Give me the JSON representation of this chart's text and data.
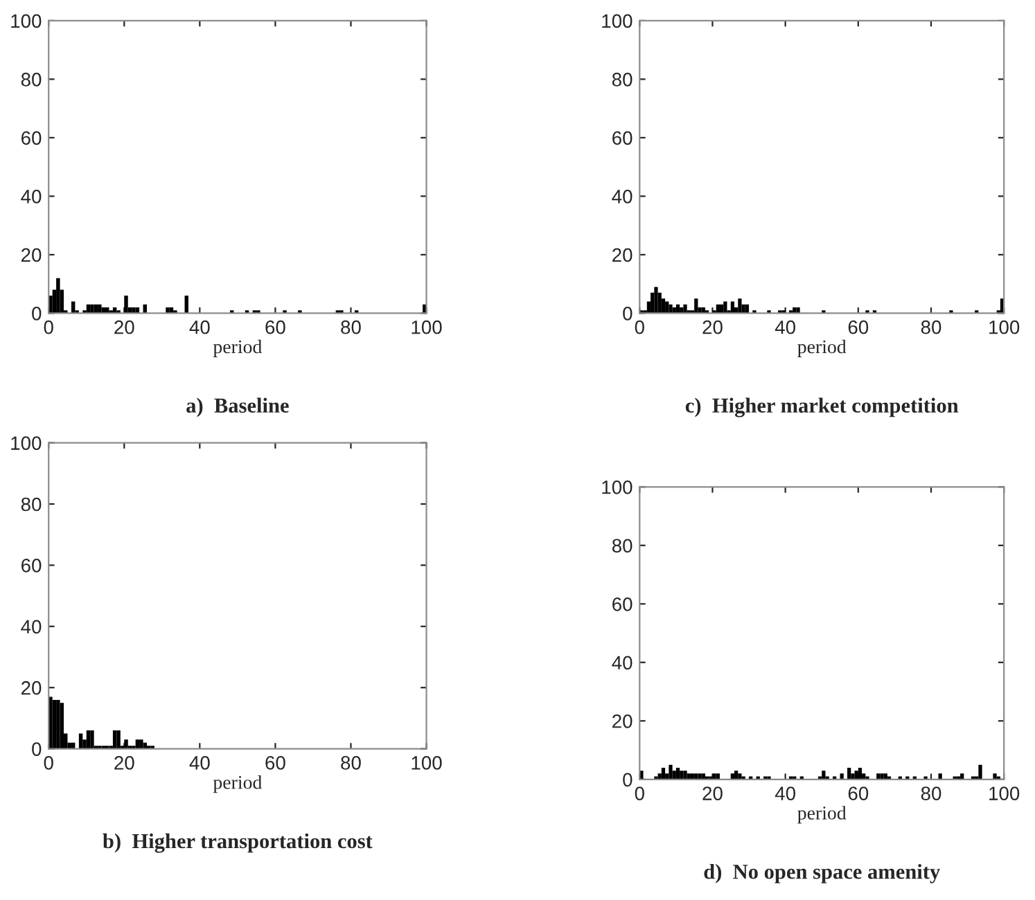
{
  "chart_data": [
    {
      "type": "histogram",
      "title": "a)  Baseline",
      "xlabel": "period",
      "color": "#000000",
      "xlim": [
        0,
        100
      ],
      "ylim": [
        0,
        100
      ],
      "xticks": [
        0,
        20,
        40,
        60,
        80,
        100
      ],
      "yticks": [
        0,
        20,
        40,
        60,
        80,
        100
      ],
      "bins": [
        0,
        1,
        2,
        3,
        4,
        5,
        6,
        7,
        8,
        9,
        10,
        11,
        12,
        13,
        14,
        15,
        16,
        17,
        18,
        19,
        20,
        21,
        22,
        23,
        24,
        25,
        26,
        27,
        28,
        29,
        30,
        31,
        32,
        33,
        34,
        35,
        36,
        37,
        38,
        39,
        40,
        41,
        42,
        43,
        44,
        45,
        46,
        47,
        48,
        49,
        50,
        51,
        52,
        53,
        54,
        55,
        56,
        57,
        58,
        59,
        60,
        61,
        62,
        63,
        64,
        65,
        66,
        67,
        68,
        69,
        70,
        71,
        72,
        73,
        74,
        75,
        76,
        77,
        78,
        79,
        80,
        81,
        82,
        83,
        84,
        85,
        86,
        87,
        88,
        89,
        90,
        91,
        92,
        93,
        94,
        95,
        96,
        97,
        98,
        99,
        100
      ],
      "values": [
        6,
        8,
        12,
        8,
        1,
        0,
        4,
        1,
        0,
        1,
        3,
        3,
        3,
        3,
        2,
        2,
        1,
        2,
        1,
        0,
        6,
        2,
        2,
        2,
        0,
        3,
        0,
        0,
        0,
        0,
        0,
        2,
        2,
        1,
        0,
        0,
        6,
        0,
        0,
        0,
        0,
        0,
        0,
        0,
        0,
        0,
        0,
        0,
        1,
        0,
        0,
        0,
        1,
        0,
        1,
        1,
        0,
        0,
        0,
        0,
        0,
        0,
        1,
        0,
        0,
        0,
        1,
        0,
        0,
        0,
        0,
        0,
        0,
        0,
        0,
        0,
        1,
        1,
        0,
        0,
        0,
        1,
        0,
        0,
        0,
        0,
        0,
        0,
        0,
        0,
        0,
        0,
        0,
        0,
        0,
        0,
        0,
        0,
        0,
        3
      ]
    },
    {
      "type": "histogram",
      "title": "c)  Higher market competition",
      "xlabel": "period",
      "color": "#000000",
      "xlim": [
        0,
        100
      ],
      "ylim": [
        0,
        100
      ],
      "xticks": [
        0,
        20,
        40,
        60,
        80,
        100
      ],
      "yticks": [
        0,
        20,
        40,
        60,
        80,
        100
      ],
      "bins": [
        0,
        1,
        2,
        3,
        4,
        5,
        6,
        7,
        8,
        9,
        10,
        11,
        12,
        13,
        14,
        15,
        16,
        17,
        18,
        19,
        20,
        21,
        22,
        23,
        24,
        25,
        26,
        27,
        28,
        29,
        30,
        31,
        32,
        33,
        34,
        35,
        36,
        37,
        38,
        39,
        40,
        41,
        42,
        43,
        44,
        45,
        46,
        47,
        48,
        49,
        50,
        51,
        52,
        53,
        54,
        55,
        56,
        57,
        58,
        59,
        60,
        61,
        62,
        63,
        64,
        65,
        66,
        67,
        68,
        69,
        70,
        71,
        72,
        73,
        74,
        75,
        76,
        77,
        78,
        79,
        80,
        81,
        82,
        83,
        84,
        85,
        86,
        87,
        88,
        89,
        90,
        91,
        92,
        93,
        94,
        95,
        96,
        97,
        98,
        99,
        100
      ],
      "values": [
        1,
        1,
        4,
        7,
        9,
        7,
        5,
        4,
        3,
        2,
        3,
        2,
        3,
        1,
        1,
        5,
        2,
        2,
        1,
        0,
        1,
        3,
        3,
        4,
        1,
        4,
        2,
        5,
        3,
        3,
        0,
        1,
        0,
        0,
        0,
        1,
        0,
        0,
        1,
        1,
        0,
        1,
        2,
        2,
        0,
        0,
        0,
        0,
        0,
        0,
        1,
        0,
        0,
        0,
        0,
        0,
        0,
        0,
        0,
        0,
        0,
        0,
        1,
        0,
        1,
        0,
        0,
        0,
        0,
        0,
        0,
        0,
        0,
        0,
        0,
        0,
        0,
        0,
        0,
        0,
        0,
        0,
        0,
        0,
        0,
        1,
        0,
        0,
        0,
        0,
        0,
        0,
        1,
        0,
        0,
        0,
        0,
        0,
        1,
        5
      ]
    },
    {
      "type": "histogram",
      "title": "b)  Higher transportation cost",
      "xlabel": "period",
      "color": "#000000",
      "xlim": [
        0,
        100
      ],
      "ylim": [
        0,
        100
      ],
      "xticks": [
        0,
        20,
        40,
        60,
        80,
        100
      ],
      "yticks": [
        0,
        20,
        40,
        60,
        80,
        100
      ],
      "bins": [
        0,
        1,
        2,
        3,
        4,
        5,
        6,
        7,
        8,
        9,
        10,
        11,
        12,
        13,
        14,
        15,
        16,
        17,
        18,
        19,
        20,
        21,
        22,
        23,
        24,
        25,
        26,
        27,
        28,
        29,
        30,
        31,
        32,
        33,
        34,
        35,
        36,
        37,
        38,
        39,
        40,
        41,
        42,
        43,
        44,
        45,
        46,
        47,
        48,
        49,
        50,
        51,
        52,
        53,
        54,
        55,
        56,
        57,
        58,
        59,
        60,
        61,
        62,
        63,
        64,
        65,
        66,
        67,
        68,
        69,
        70,
        71,
        72,
        73,
        74,
        75,
        76,
        77,
        78,
        79,
        80,
        81,
        82,
        83,
        84,
        85,
        86,
        87,
        88,
        89,
        90,
        91,
        92,
        93,
        94,
        95,
        96,
        97,
        98,
        99,
        100
      ],
      "values": [
        17,
        16,
        16,
        15,
        5,
        2,
        2,
        0,
        5,
        3,
        6,
        6,
        1,
        1,
        1,
        1,
        1,
        6,
        6,
        1,
        3,
        1,
        1,
        3,
        3,
        2,
        1,
        1,
        0,
        0,
        0,
        0,
        0,
        0,
        0,
        0,
        0,
        0,
        0,
        0,
        0,
        0,
        0,
        0,
        0,
        0,
        0,
        0,
        0,
        0,
        0,
        0,
        0,
        0,
        0,
        0,
        0,
        0,
        0,
        0,
        0,
        0,
        0,
        0,
        0,
        0,
        0,
        0,
        0,
        0,
        0,
        0,
        0,
        0,
        0,
        0,
        0,
        0,
        0,
        0,
        0,
        0,
        0,
        0,
        0,
        0,
        0,
        0,
        0,
        0,
        0,
        0,
        0,
        0,
        0,
        0,
        0,
        0,
        0,
        0
      ]
    },
    {
      "type": "histogram",
      "title": "d)  No open space amenity",
      "xlabel": "period",
      "color": "#000000",
      "xlim": [
        0,
        100
      ],
      "ylim": [
        0,
        100
      ],
      "xticks": [
        0,
        20,
        40,
        60,
        80,
        100
      ],
      "yticks": [
        0,
        20,
        40,
        60,
        80,
        100
      ],
      "bins": [
        0,
        1,
        2,
        3,
        4,
        5,
        6,
        7,
        8,
        9,
        10,
        11,
        12,
        13,
        14,
        15,
        16,
        17,
        18,
        19,
        20,
        21,
        22,
        23,
        24,
        25,
        26,
        27,
        28,
        29,
        30,
        31,
        32,
        33,
        34,
        35,
        36,
        37,
        38,
        39,
        40,
        41,
        42,
        43,
        44,
        45,
        46,
        47,
        48,
        49,
        50,
        51,
        52,
        53,
        54,
        55,
        56,
        57,
        58,
        59,
        60,
        61,
        62,
        63,
        64,
        65,
        66,
        67,
        68,
        69,
        70,
        71,
        72,
        73,
        74,
        75,
        76,
        77,
        78,
        79,
        80,
        81,
        82,
        83,
        84,
        85,
        86,
        87,
        88,
        89,
        90,
        91,
        92,
        93,
        94,
        95,
        96,
        97,
        98,
        99,
        100
      ],
      "values": [
        3,
        0,
        0,
        0,
        1,
        2,
        4,
        2,
        5,
        3,
        4,
        3,
        3,
        2,
        2,
        2,
        2,
        2,
        1,
        1,
        2,
        2,
        0,
        0,
        0,
        2,
        3,
        2,
        1,
        0,
        1,
        0,
        1,
        0,
        1,
        1,
        0,
        0,
        0,
        0,
        0,
        1,
        1,
        0,
        1,
        0,
        0,
        0,
        0,
        1,
        3,
        1,
        0,
        1,
        0,
        2,
        0,
        4,
        2,
        3,
        4,
        2,
        1,
        0,
        0,
        2,
        2,
        2,
        1,
        0,
        0,
        1,
        0,
        1,
        0,
        1,
        0,
        0,
        1,
        0,
        0,
        0,
        2,
        0,
        0,
        0,
        1,
        1,
        2,
        0,
        0,
        1,
        1,
        5,
        0,
        0,
        0,
        2,
        1,
        0
      ]
    }
  ]
}
